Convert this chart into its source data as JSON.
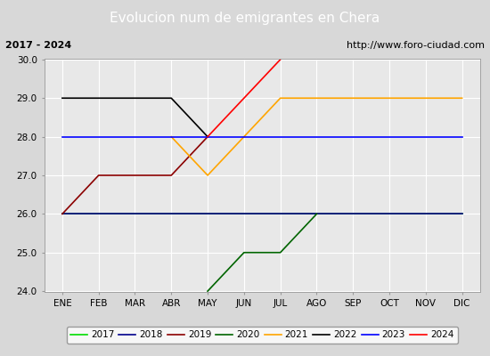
{
  "title": "Evolucion num de emigrantes en Chera",
  "subtitle_left": "2017 - 2024",
  "subtitle_right": "http://www.foro-ciudad.com",
  "months": [
    "ENE",
    "FEB",
    "MAR",
    "ABR",
    "MAY",
    "JUN",
    "JUL",
    "AGO",
    "SEP",
    "OCT",
    "NOV",
    "DIC"
  ],
  "month_indices": [
    1,
    2,
    3,
    4,
    5,
    6,
    7,
    8,
    9,
    10,
    11,
    12
  ],
  "series_order": [
    "2017",
    "2018",
    "2019",
    "2020",
    "2021",
    "2022",
    "2023",
    "2024"
  ],
  "series": {
    "2017": {
      "color": "#00dd00",
      "data": [
        [
          1,
          26.0
        ],
        [
          12,
          26.0
        ]
      ]
    },
    "2018": {
      "color": "#00008b",
      "data": [
        [
          1,
          26.0
        ],
        [
          12,
          26.0
        ]
      ]
    },
    "2019": {
      "color": "#8b0000",
      "data": [
        [
          1,
          26.0
        ],
        [
          2,
          27.0
        ],
        [
          3,
          27.0
        ],
        [
          4,
          27.0
        ],
        [
          5,
          28.0
        ]
      ]
    },
    "2020": {
      "color": "#006400",
      "data": [
        [
          5,
          24.0
        ],
        [
          6,
          25.0
        ],
        [
          7,
          25.0
        ],
        [
          8,
          26.0
        ]
      ]
    },
    "2021": {
      "color": "#ffa500",
      "data": [
        [
          4,
          28.0
        ],
        [
          5,
          27.0
        ],
        [
          6,
          28.0
        ],
        [
          7,
          29.0
        ],
        [
          8,
          29.0
        ],
        [
          9,
          29.0
        ],
        [
          10,
          29.0
        ],
        [
          11,
          29.0
        ],
        [
          12,
          29.0
        ]
      ]
    },
    "2022": {
      "color": "#000000",
      "data": [
        [
          1,
          29.0
        ],
        [
          2,
          29.0
        ],
        [
          3,
          29.0
        ],
        [
          4,
          29.0
        ],
        [
          5,
          28.0
        ]
      ]
    },
    "2023": {
      "color": "#0000ff",
      "data": [
        [
          1,
          28.0
        ],
        [
          12,
          28.0
        ]
      ]
    },
    "2024": {
      "color": "#ff0000",
      "data": [
        [
          5,
          28.0
        ],
        [
          6,
          29.0
        ],
        [
          7,
          30.0
        ]
      ]
    }
  },
  "ylim": [
    24.0,
    30.0
  ],
  "yticks": [
    24.0,
    25.0,
    26.0,
    27.0,
    28.0,
    29.0,
    30.0
  ],
  "outer_bg_color": "#d8d8d8",
  "plot_bg_color": "#e8e8e8",
  "title_bg_color": "#4169b0",
  "title_color": "#ffffff",
  "grid_color": "#ffffff",
  "title_fontsize": 11,
  "subtitle_fontsize": 8,
  "tick_fontsize": 7.5,
  "legend_fontsize": 7.5
}
